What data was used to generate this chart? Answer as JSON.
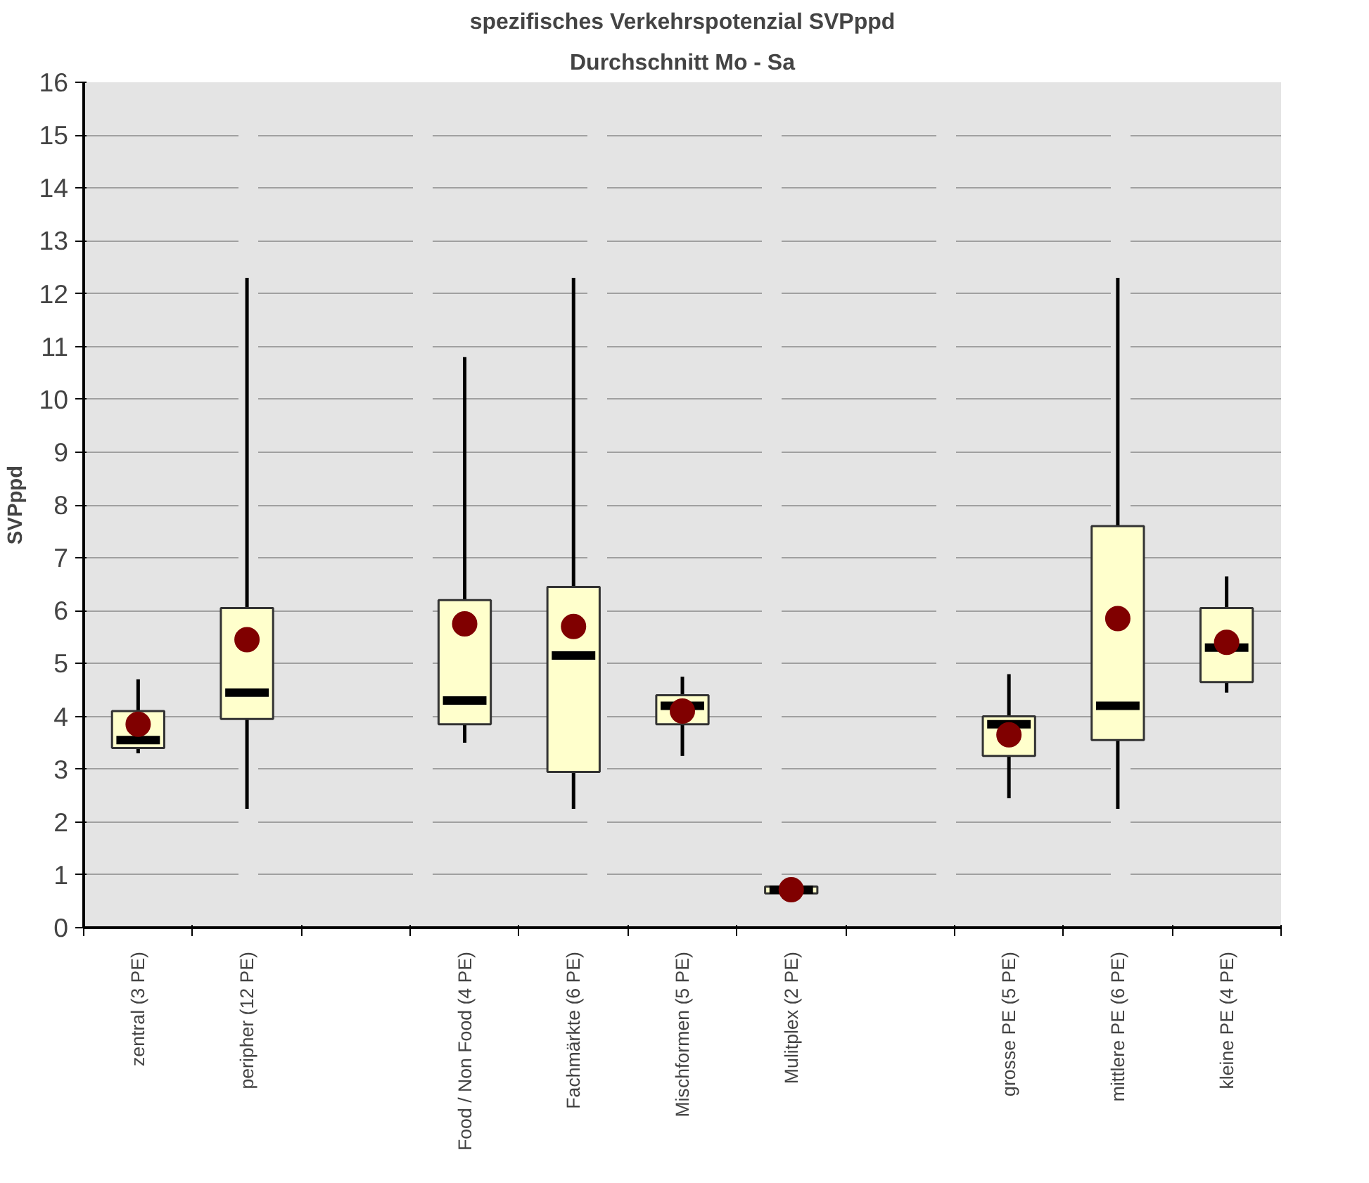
{
  "chart_data": {
    "type": "box",
    "title": "spezifisches Verkehrspotenzial SVPppd",
    "subtitle": "Durchschnitt Mo - Sa",
    "ylabel": "SVPppd",
    "categories": [
      "zentral (3 PE)",
      "peripher (12 PE)",
      null,
      "Food / Non Food (4 PE)",
      "Fachmärkte (6 PE)",
      "Mischformen (5 PE)",
      "Mulitplex (2 PE)",
      null,
      "grosse PE (5 PE)",
      "mittlere PE (6 PE)",
      "kleine PE (4 PE)"
    ],
    "boxes": [
      {
        "low": 3.3,
        "q1": 3.4,
        "median": 3.55,
        "q3": 4.1,
        "high": 4.7
      },
      {
        "low": 2.25,
        "q1": 3.95,
        "median": 4.45,
        "q3": 6.05,
        "high": 12.3
      },
      null,
      {
        "low": 3.5,
        "q1": 3.85,
        "median": 4.3,
        "q3": 6.2,
        "high": 10.8
      },
      {
        "low": 2.25,
        "q1": 2.95,
        "median": 5.15,
        "q3": 6.45,
        "high": 12.3
      },
      {
        "low": 3.25,
        "q1": 3.85,
        "median": 4.2,
        "q3": 4.4,
        "high": 4.75
      },
      {
        "low": 0.65,
        "q1": 0.65,
        "median": 0.72,
        "q3": 0.78,
        "high": 0.78
      },
      null,
      {
        "low": 2.45,
        "q1": 3.25,
        "median": 3.85,
        "q3": 4.0,
        "high": 4.8
      },
      {
        "low": 2.25,
        "q1": 3.55,
        "median": 4.2,
        "q3": 7.6,
        "high": 12.3
      },
      {
        "low": 4.45,
        "q1": 4.65,
        "median": 5.3,
        "q3": 6.05,
        "high": 6.65
      }
    ],
    "color": "#ffffcc",
    "series": [
      {
        "type": "scatter",
        "color": "#800000",
        "x": [
          "zentral (3 PE)",
          "peripher (12 PE)",
          "Food / Non Food (4 PE)",
          "Fachmärkte (6 PE)",
          "Mischformen (5 PE)",
          "Mulitplex (2 PE)",
          "grosse PE (5 PE)",
          "mittlere PE (6 PE)",
          "kleine PE (4 PE)"
        ],
        "values": [
          3.85,
          5.45,
          5.75,
          5.7,
          4.1,
          0.72,
          3.65,
          5.85,
          5.4
        ]
      }
    ],
    "ylim": [
      0,
      16
    ],
    "yticks": [
      0,
      1,
      2,
      3,
      4,
      5,
      6,
      7,
      8,
      9,
      10,
      11,
      12,
      13,
      14,
      15,
      16
    ],
    "grid": "y",
    "marker": "circle"
  }
}
